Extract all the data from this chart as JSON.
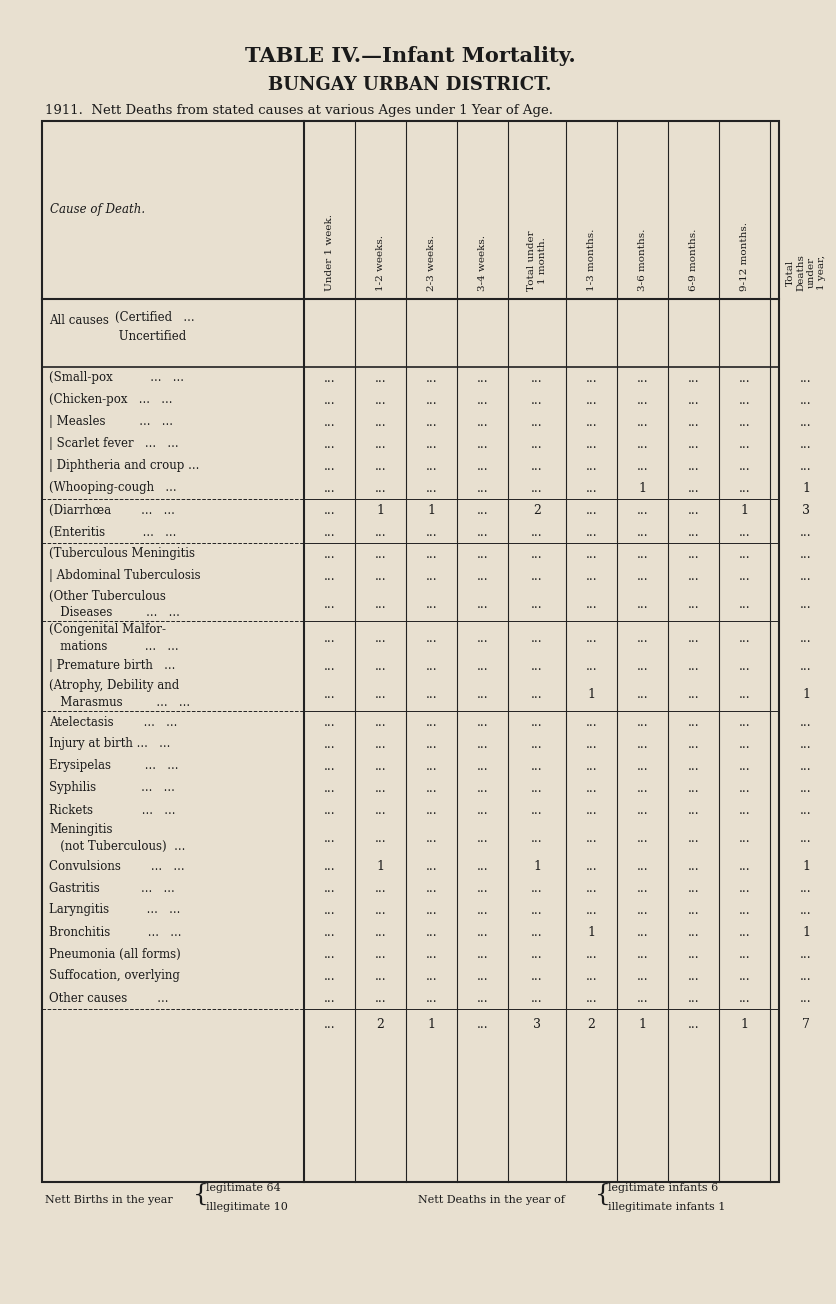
{
  "title1": "TABLE IV.—Infant Mortality.",
  "title2": "BUNGAY URBAN DISTRICT.",
  "subtitle": "1911.  Nett Deaths from stated causes at various Ages under 1 Year of Age.",
  "bg_color": "#e8e0d0",
  "col_headers": [
    "Under 1 week.",
    "1-2 weeks.",
    "2-3 weeks.",
    "3-4 weeks.",
    "Total under\n1 month.",
    "1-3 months.",
    "3-6 months.",
    "6-9 months.",
    "9-12 months.",
    "Total\nDeaths\nunder\n1 year,"
  ],
  "row_label_header": "Cause of Death.",
  "rows": [
    {
      "label_type": "all_causes",
      "values": [
        "",
        "",
        "",
        "",
        "",
        "",
        "",
        "",
        "",
        ""
      ],
      "separator_after": true
    },
    {
      "label_type": "brace",
      "label": "(Small-pox          ...   ...",
      "values": [
        "...",
        "...",
        "...",
        "...",
        "...",
        "...",
        "...",
        "...",
        "...",
        "..."
      ]
    },
    {
      "label_type": "brace",
      "label": "(Chicken-pox   ...   ...",
      "values": [
        "...",
        "...",
        "...",
        "...",
        "...",
        "...",
        "...",
        "...",
        "...",
        "..."
      ]
    },
    {
      "label_type": "brace",
      "label": "| Measles         ...   ...",
      "values": [
        "...",
        "...",
        "...",
        "...",
        "...",
        "...",
        "...",
        "...",
        "...",
        "..."
      ]
    },
    {
      "label_type": "brace",
      "label": "| Scarlet fever   ...   ...",
      "values": [
        "...",
        "...",
        "...",
        "...",
        "...",
        "...",
        "...",
        "...",
        "...",
        "..."
      ]
    },
    {
      "label_type": "brace",
      "label": "| Diphtheria and croup ...",
      "values": [
        "...",
        "...",
        "...",
        "...",
        "...",
        "...",
        "...",
        "...",
        "...",
        "..."
      ]
    },
    {
      "label_type": "brace",
      "label": "(Whooping-cough   ...",
      "values": [
        "...",
        "...",
        "...",
        "...",
        "...",
        "...",
        "1",
        "...",
        "...",
        "1"
      ],
      "separator_after": true
    },
    {
      "label_type": "brace",
      "label": "(Diarrhœa        ...   ...",
      "values": [
        "...",
        "1",
        "1",
        "...",
        "2",
        "...",
        "...",
        "...",
        "1",
        "3"
      ]
    },
    {
      "label_type": "brace",
      "label": "(Enteritis          ...   ...",
      "values": [
        "...",
        "...",
        "...",
        "...",
        "...",
        "...",
        "...",
        "...",
        "...",
        "..."
      ],
      "separator_after": true
    },
    {
      "label_type": "brace",
      "label": "(Tuberculous Meningitis",
      "values": [
        "...",
        "...",
        "...",
        "...",
        "...",
        "...",
        "...",
        "...",
        "...",
        "..."
      ]
    },
    {
      "label_type": "brace",
      "label": "| Abdominal Tuberculosis",
      "values": [
        "...",
        "...",
        "...",
        "...",
        "...",
        "...",
        "...",
        "...",
        "...",
        "..."
      ]
    },
    {
      "label_type": "two_line",
      "line1": "(Other Tuberculous",
      "line2": "   Diseases         ...   ...",
      "values": [
        "...",
        "...",
        "...",
        "...",
        "...",
        "...",
        "...",
        "...",
        "...",
        "..."
      ],
      "separator_after": true
    },
    {
      "label_type": "two_line",
      "line1": "(Congenital Malfor-",
      "line2": "   mations          ...   ...",
      "values": [
        "...",
        "...",
        "...",
        "...",
        "...",
        "...",
        "...",
        "...",
        "...",
        "..."
      ]
    },
    {
      "label_type": "brace",
      "label": "| Premature birth   ...",
      "values": [
        "...",
        "...",
        "...",
        "...",
        "...",
        "...",
        "...",
        "...",
        "...",
        "..."
      ]
    },
    {
      "label_type": "two_line",
      "line1": "(Atrophy, Debility and",
      "line2": "   Marasmus         ...   ...",
      "values": [
        "...",
        "...",
        "...",
        "...",
        "...",
        "1",
        "...",
        "...",
        "...",
        "1"
      ],
      "separator_after": true
    },
    {
      "label_type": "plain",
      "label": "Atelectasis        ...   ...",
      "values": [
        "...",
        "...",
        "...",
        "...",
        "...",
        "...",
        "...",
        "...",
        "...",
        "..."
      ]
    },
    {
      "label_type": "plain",
      "label": "Injury at birth ...   ...",
      "values": [
        "...",
        "...",
        "...",
        "...",
        "...",
        "...",
        "...",
        "...",
        "...",
        "..."
      ]
    },
    {
      "label_type": "plain",
      "label": "Erysipelas         ...   ...",
      "values": [
        "...",
        "...",
        "...",
        "...",
        "...",
        "...",
        "...",
        "...",
        "...",
        "..."
      ]
    },
    {
      "label_type": "plain",
      "label": "Syphilis            ...   ...",
      "values": [
        "...",
        "...",
        "...",
        "...",
        "...",
        "...",
        "...",
        "...",
        "...",
        "..."
      ]
    },
    {
      "label_type": "plain",
      "label": "Rickets             ...   ...",
      "values": [
        "...",
        "...",
        "...",
        "...",
        "...",
        "...",
        "...",
        "...",
        "...",
        "..."
      ]
    },
    {
      "label_type": "two_line",
      "line1": "Meningitis",
      "line2": "   (not Tuberculous)  ...",
      "values": [
        "...",
        "...",
        "...",
        "...",
        "...",
        "...",
        "...",
        "...",
        "...",
        "..."
      ]
    },
    {
      "label_type": "plain",
      "label": "Convulsions        ...   ...",
      "values": [
        "...",
        "1",
        "...",
        "...",
        "1",
        "...",
        "...",
        "...",
        "...",
        "1"
      ]
    },
    {
      "label_type": "plain",
      "label": "Gastritis           ...   ...",
      "values": [
        "...",
        "...",
        "...",
        "...",
        "...",
        "...",
        "...",
        "...",
        "...",
        "..."
      ]
    },
    {
      "label_type": "plain",
      "label": "Laryngitis          ...   ...",
      "values": [
        "...",
        "...",
        "...",
        "...",
        "...",
        "...",
        "...",
        "...",
        "...",
        "..."
      ]
    },
    {
      "label_type": "plain",
      "label": "Bronchitis          ...   ...",
      "values": [
        "...",
        "...",
        "...",
        "...",
        "...",
        "1",
        "...",
        "...",
        "...",
        "1"
      ]
    },
    {
      "label_type": "plain",
      "label": "Pneumonia (all forms)",
      "values": [
        "...",
        "...",
        "...",
        "...",
        "...",
        "...",
        "...",
        "...",
        "...",
        "..."
      ]
    },
    {
      "label_type": "plain",
      "label": "Suffocation, overlying",
      "values": [
        "...",
        "...",
        "...",
        "...",
        "...",
        "...",
        "...",
        "...",
        "...",
        "..."
      ]
    },
    {
      "label_type": "plain",
      "label": "Other causes        ...",
      "values": [
        "...",
        "...",
        "...",
        "...",
        "...",
        "...",
        "...",
        "...",
        "...",
        "..."
      ],
      "separator_after": true
    },
    {
      "label_type": "plain",
      "label": "",
      "values": [
        "...",
        "2",
        "1",
        "...",
        "3",
        "2",
        "1",
        "...",
        "1",
        "7"
      ],
      "separator_after": false
    }
  ]
}
